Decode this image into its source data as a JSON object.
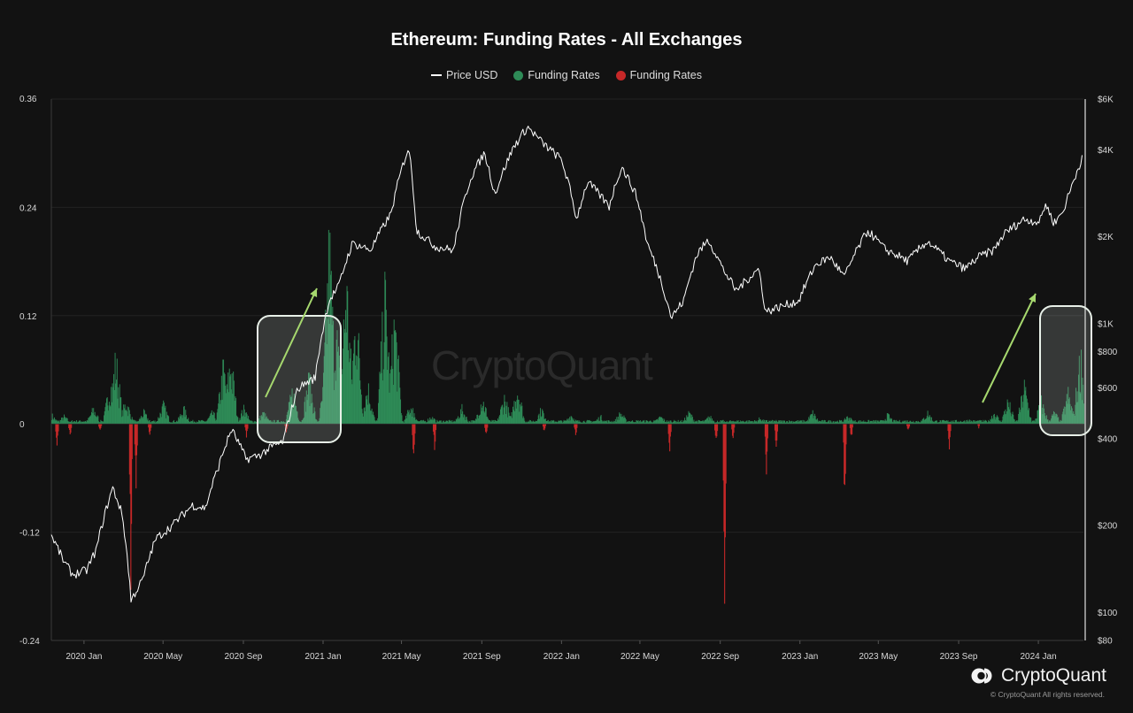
{
  "header": {
    "title": "Ethereum: Funding Rates - All Exchanges"
  },
  "legend": [
    {
      "label": "Price USD",
      "color": "#ffffff",
      "shape": "line"
    },
    {
      "label": "Funding Rates",
      "color": "#2e8b57",
      "shape": "dot"
    },
    {
      "label": "Funding Rates",
      "color": "#c62828",
      "shape": "dot"
    }
  ],
  "watermark": "CryptoQuant",
  "brand": {
    "name": "CryptoQuant",
    "copyright": "© CryptoQuant All rights reserved."
  },
  "colors": {
    "background": "#121212",
    "positive": "#2e8b57",
    "negative": "#c62828",
    "price": "#ffffff",
    "arrow": "#a6d86e",
    "highlight_box": "#e8f0e8"
  },
  "chart_data": {
    "type": "bar",
    "title": "Ethereum: Funding Rates - All Exchanges",
    "x_range": [
      "2019-11-12",
      "2024-03-10"
    ],
    "x_ticks": [
      "2020 Jan",
      "2020 May",
      "2020 Sep",
      "2021 Jan",
      "2021 May",
      "2021 Sep",
      "2022 Jan",
      "2022 May",
      "2022 Sep",
      "2023 Jan",
      "2023 May",
      "2023 Sep",
      "2024 Jan"
    ],
    "y_left": {
      "ticks": [
        "0.36",
        "0.24",
        "0.12",
        "0",
        "-0.12",
        "-0.24"
      ],
      "range": [
        -0.24,
        0.36
      ]
    },
    "y_right": {
      "scale": "log",
      "ticks": [
        "$6K",
        "$4K",
        "$2K",
        "$1K",
        "$800",
        "$600",
        "$400",
        "$200",
        "$100",
        "$80"
      ],
      "range": [
        80,
        6000
      ]
    },
    "grid": "horizontal",
    "legend_position": "top-center",
    "series": [
      {
        "name": "Price USD",
        "type": "line",
        "axis": "right",
        "points": [
          [
            "2019-11-12",
            185
          ],
          [
            "2019-12-01",
            150
          ],
          [
            "2019-12-15",
            135
          ],
          [
            "2020-01-05",
            140
          ],
          [
            "2020-01-20",
            165
          ],
          [
            "2020-02-14",
            270
          ],
          [
            "2020-02-28",
            220
          ],
          [
            "2020-03-13",
            110
          ],
          [
            "2020-03-31",
            130
          ],
          [
            "2020-04-20",
            180
          ],
          [
            "2020-05-15",
            200
          ],
          [
            "2020-06-15",
            235
          ],
          [
            "2020-07-05",
            230
          ],
          [
            "2020-07-25",
            320
          ],
          [
            "2020-08-14",
            430
          ],
          [
            "2020-09-05",
            340
          ],
          [
            "2020-09-25",
            350
          ],
          [
            "2020-10-15",
            375
          ],
          [
            "2020-11-01",
            390
          ],
          [
            "2020-11-24",
            600
          ],
          [
            "2020-12-20",
            650
          ],
          [
            "2021-01-10",
            1200
          ],
          [
            "2021-01-25",
            1350
          ],
          [
            "2021-02-15",
            1900
          ],
          [
            "2021-03-15",
            1800
          ],
          [
            "2021-04-15",
            2400
          ],
          [
            "2021-05-12",
            4100
          ],
          [
            "2021-05-24",
            2100
          ],
          [
            "2021-06-22",
            1850
          ],
          [
            "2021-07-20",
            1800
          ],
          [
            "2021-08-15",
            3200
          ],
          [
            "2021-09-05",
            3900
          ],
          [
            "2021-09-21",
            2800
          ],
          [
            "2021-10-20",
            4100
          ],
          [
            "2021-11-10",
            4800
          ],
          [
            "2021-12-04",
            4200
          ],
          [
            "2022-01-01",
            3700
          ],
          [
            "2022-01-24",
            2300
          ],
          [
            "2022-02-10",
            3100
          ],
          [
            "2022-03-15",
            2550
          ],
          [
            "2022-04-03",
            3500
          ],
          [
            "2022-04-25",
            2800
          ],
          [
            "2022-05-12",
            1900
          ],
          [
            "2022-06-18",
            1050
          ],
          [
            "2022-07-07",
            1200
          ],
          [
            "2022-07-28",
            1750
          ],
          [
            "2022-08-14",
            1950
          ],
          [
            "2022-09-05",
            1550
          ],
          [
            "2022-09-25",
            1300
          ],
          [
            "2022-10-30",
            1550
          ],
          [
            "2022-11-09",
            1100
          ],
          [
            "2022-12-30",
            1200
          ],
          [
            "2023-01-25",
            1600
          ],
          [
            "2023-02-16",
            1700
          ],
          [
            "2023-03-10",
            1450
          ],
          [
            "2023-04-15",
            2100
          ],
          [
            "2023-05-10",
            1820
          ],
          [
            "2023-06-15",
            1650
          ],
          [
            "2023-07-15",
            1930
          ],
          [
            "2023-08-17",
            1650
          ],
          [
            "2023-09-11",
            1550
          ],
          [
            "2023-10-01",
            1700
          ],
          [
            "2023-10-25",
            1800
          ],
          [
            "2023-11-10",
            2050
          ],
          [
            "2023-12-10",
            2300
          ],
          [
            "2024-01-03",
            2250
          ],
          [
            "2024-01-12",
            2600
          ],
          [
            "2024-01-25",
            2230
          ],
          [
            "2024-02-08",
            2450
          ],
          [
            "2024-02-20",
            2950
          ],
          [
            "2024-03-05",
            3600
          ],
          [
            "2024-03-09",
            3900
          ]
        ]
      },
      {
        "name": "Funding Rates",
        "type": "bar",
        "axis": "left",
        "sign": "positive",
        "points": [
          [
            "2019-11-12",
            0.012
          ],
          [
            "2019-12-01",
            0.01
          ],
          [
            "2020-01-15",
            0.02
          ],
          [
            "2020-02-10",
            0.055
          ],
          [
            "2020-02-18",
            0.085
          ],
          [
            "2020-03-05",
            0.03
          ],
          [
            "2020-04-01",
            0.015
          ],
          [
            "2020-05-01",
            0.025
          ],
          [
            "2020-06-01",
            0.02
          ],
          [
            "2020-07-15",
            0.015
          ],
          [
            "2020-08-01",
            0.075
          ],
          [
            "2020-08-12",
            0.085
          ],
          [
            "2020-09-01",
            0.02
          ],
          [
            "2020-10-01",
            0.015
          ],
          [
            "2020-11-15",
            0.045
          ],
          [
            "2020-12-10",
            0.06
          ],
          [
            "2021-01-05",
            0.07
          ],
          [
            "2021-01-10",
            0.235
          ],
          [
            "2021-01-20",
            0.13
          ],
          [
            "2021-02-05",
            0.19
          ],
          [
            "2021-02-20",
            0.15
          ],
          [
            "2021-03-10",
            0.05
          ],
          [
            "2021-04-05",
            0.17
          ],
          [
            "2021-04-20",
            0.14
          ],
          [
            "2021-05-15",
            0.025
          ],
          [
            "2021-06-15",
            0.01
          ],
          [
            "2021-08-01",
            0.02
          ],
          [
            "2021-09-01",
            0.035
          ],
          [
            "2021-10-05",
            0.035
          ],
          [
            "2021-10-25",
            0.05
          ],
          [
            "2021-12-01",
            0.02
          ],
          [
            "2022-01-15",
            0.012
          ],
          [
            "2022-03-01",
            0.01
          ],
          [
            "2022-04-01",
            0.015
          ],
          [
            "2022-06-01",
            0.01
          ],
          [
            "2022-07-15",
            0.015
          ],
          [
            "2022-08-15",
            0.01
          ],
          [
            "2022-11-01",
            0.008
          ],
          [
            "2023-01-20",
            0.015
          ],
          [
            "2023-03-15",
            0.01
          ],
          [
            "2023-05-15",
            0.012
          ],
          [
            "2023-07-15",
            0.015
          ],
          [
            "2023-09-15",
            0.006
          ],
          [
            "2023-10-25",
            0.015
          ],
          [
            "2023-11-15",
            0.03
          ],
          [
            "2023-12-10",
            0.05
          ],
          [
            "2024-01-05",
            0.03
          ],
          [
            "2024-01-25",
            0.015
          ],
          [
            "2024-02-15",
            0.04
          ],
          [
            "2024-03-05",
            0.09
          ]
        ]
      },
      {
        "name": "Funding Rates",
        "type": "bar",
        "axis": "left",
        "sign": "negative",
        "points": [
          [
            "2019-11-20",
            -0.028
          ],
          [
            "2019-12-10",
            -0.015
          ],
          [
            "2020-01-25",
            -0.01
          ],
          [
            "2020-03-12",
            -0.19
          ],
          [
            "2020-03-20",
            -0.075
          ],
          [
            "2020-04-10",
            -0.015
          ],
          [
            "2020-09-05",
            -0.018
          ],
          [
            "2020-11-05",
            -0.01
          ],
          [
            "2021-05-19",
            -0.045
          ],
          [
            "2021-06-20",
            -0.03
          ],
          [
            "2021-09-07",
            -0.015
          ],
          [
            "2021-12-05",
            -0.01
          ],
          [
            "2022-01-22",
            -0.015
          ],
          [
            "2022-06-15",
            -0.035
          ],
          [
            "2022-08-25",
            -0.025
          ],
          [
            "2022-09-07",
            -0.2
          ],
          [
            "2022-09-20",
            -0.02
          ],
          [
            "2022-11-10",
            -0.06
          ],
          [
            "2022-11-25",
            -0.03
          ],
          [
            "2023-03-10",
            -0.1
          ],
          [
            "2023-03-20",
            -0.02
          ],
          [
            "2023-06-15",
            -0.01
          ],
          [
            "2023-08-17",
            -0.035
          ],
          [
            "2023-10-01",
            -0.005
          ]
        ]
      }
    ]
  }
}
